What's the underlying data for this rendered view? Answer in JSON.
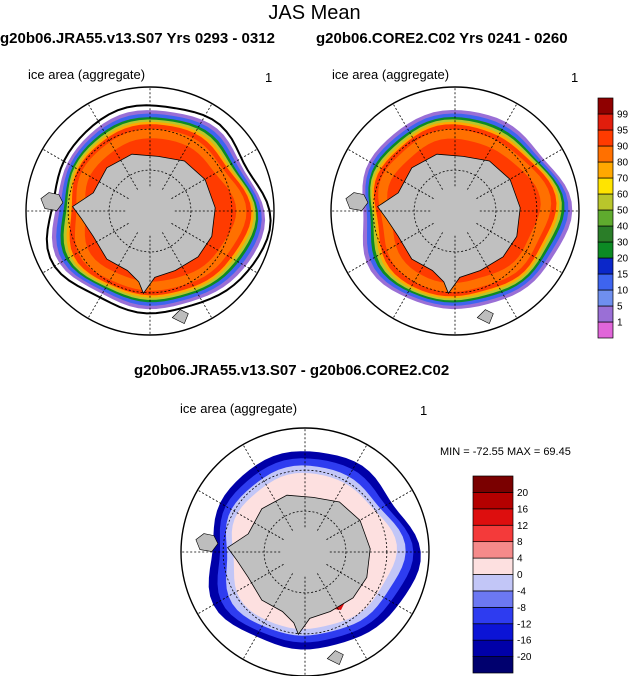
{
  "page": {
    "title": "JAS Mean",
    "left_panel_title": "g20b06.JRA55.v13.S07  Yrs 0293 - 0312",
    "right_panel_title": "g20b06.CORE2.C02  Yrs 0241 - 0260",
    "diff_title": "g20b06.JRA55.v13.S07 - g20b06.CORE2.C02",
    "field_label": "ice area  (aggregate)",
    "unit_label": "1",
    "minmax": "MIN = -72.55 MAX =  69.45"
  },
  "chart_data": [
    {
      "type": "heatmap",
      "title": "g20b06.JRA55.v13.S07  Yrs 0293 - 0312",
      "subtitle": "ice area  (aggregate)",
      "units": "1",
      "projection": "south-polar-stereographic",
      "colorbar": {
        "placement": "right",
        "levels": [
          1,
          5,
          10,
          15,
          20,
          30,
          40,
          50,
          60,
          70,
          80,
          90,
          95,
          99
        ],
        "colors": [
          "#e066d9",
          "#9a6fd6",
          "#6f8fef",
          "#3e64ef",
          "#0b27c9",
          "#0c8a24",
          "#2a7d28",
          "#5fab2e",
          "#b9c62b",
          "#ffe400",
          "#ffa800",
          "#ff7000",
          "#ff3b00",
          "#e11d0c",
          "#8f0000"
        ]
      }
    },
    {
      "type": "heatmap",
      "title": "g20b06.CORE2.C02  Yrs 0241 - 0260",
      "subtitle": "ice area  (aggregate)",
      "units": "1",
      "projection": "south-polar-stereographic",
      "colorbar": "shared with left panel"
    },
    {
      "type": "heatmap",
      "title": "g20b06.JRA55.v13.S07 - g20b06.CORE2.C02",
      "subtitle": "ice area  (aggregate)",
      "units": "1",
      "projection": "south-polar-stereographic",
      "min": -72.55,
      "max": 69.45,
      "colorbar": {
        "placement": "right",
        "levels": [
          -20,
          -16,
          -12,
          -8,
          -4,
          0,
          4,
          8,
          12,
          16,
          20
        ],
        "colors": [
          "#00006e",
          "#0000a8",
          "#0c14d6",
          "#2e3cf0",
          "#6c78f2",
          "#c2c6f7",
          "#fde0e0",
          "#f58a8a",
          "#f43a3a",
          "#dd0e0e",
          "#b40000",
          "#7a0000"
        ]
      }
    }
  ]
}
